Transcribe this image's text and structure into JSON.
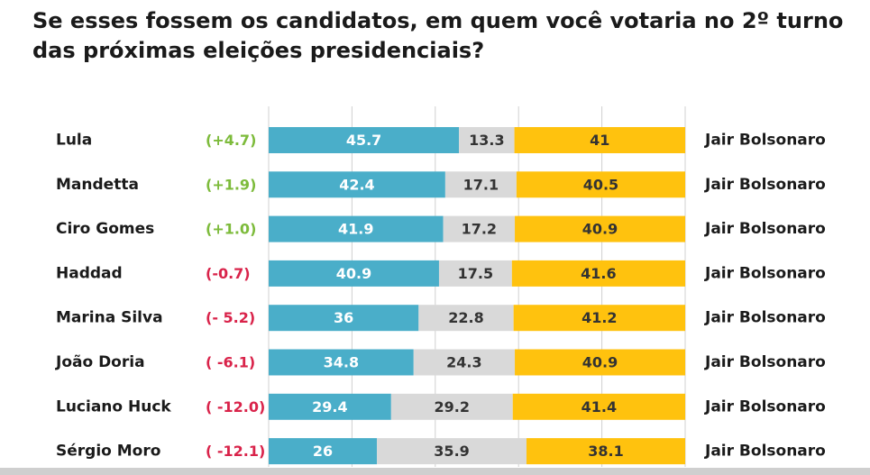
{
  "title_lines": [
    "Se esses fossem os candidatos, em quem você votaria no 2º turno",
    "das próximas eleições presidenciais?"
  ],
  "colors": {
    "candidate": "#4aaec9",
    "undecided": "#d9d9d9",
    "opponent": "#ffc20e",
    "positive_change": "#7dbb3b",
    "negative_change": "#d9234a",
    "grid": "#d0d0d0",
    "bar_text_light": "#ffffff",
    "bar_text_dark": "#333333"
  },
  "chart_data": {
    "type": "bar",
    "orientation": "horizontal",
    "stacked": true,
    "normalized_to": 100,
    "categories": [
      "Lula",
      "Mandetta",
      "Ciro Gomes",
      "Haddad",
      "Marina Silva",
      "João Doria",
      "Luciano Huck",
      "Sérgio Moro"
    ],
    "change_labels": [
      "(+4.7)",
      "(+1.9)",
      "(+1.0)",
      "(-0.7)",
      "(- 5.2)",
      "( -6.1)",
      "( -12.0)",
      "( -12.1)"
    ],
    "change_signs": [
      "positive",
      "positive",
      "positive",
      "negative",
      "negative",
      "negative",
      "negative",
      "negative"
    ],
    "opponent_labels": [
      "Jair Bolsonaro",
      "Jair Bolsonaro",
      "Jair Bolsonaro",
      "Jair Bolsonaro",
      "Jair Bolsonaro",
      "Jair Bolsonaro",
      "Jair Bolsonaro",
      "Jair Bolsonaro"
    ],
    "series": [
      {
        "values": [
          45.7,
          42.4,
          41.9,
          40.9,
          36,
          34.8,
          29.4,
          26
        ]
      },
      {
        "values": [
          13.3,
          17.1,
          17.2,
          17.5,
          22.8,
          24.3,
          29.2,
          35.9
        ]
      },
      {
        "values": [
          41,
          40.5,
          40.9,
          41.6,
          41.2,
          40.9,
          41.4,
          38.1
        ]
      }
    ],
    "xlim": [
      0,
      100
    ],
    "grid": true,
    "legend": "none"
  }
}
